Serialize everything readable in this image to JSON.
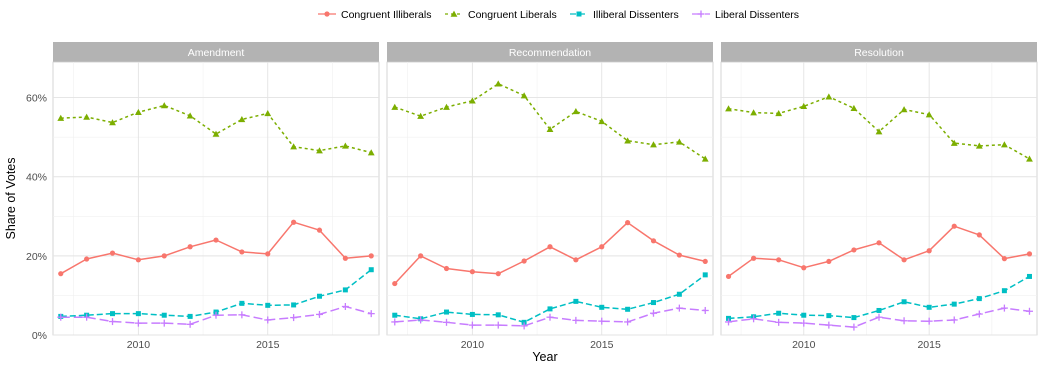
{
  "chart_data": {
    "type": "line",
    "xlabel": "Year",
    "ylabel": "Share of Votes",
    "xlim": [
      2006.7,
      2019.3
    ],
    "ylim": [
      0,
      0.69
    ],
    "y_ticks": [
      0,
      0.2,
      0.4,
      0.6
    ],
    "y_tick_labels": [
      "0%",
      "20%",
      "40%",
      "60%"
    ],
    "x_ticks": [
      2010,
      2015
    ],
    "x_tick_labels": [
      "2010",
      "2015"
    ],
    "legend_position": "top",
    "grid": true,
    "x": [
      2007,
      2008,
      2009,
      2010,
      2011,
      2012,
      2013,
      2014,
      2015,
      2016,
      2017,
      2018,
      2019
    ],
    "series_styles": [
      {
        "key": "congruent_illiberals",
        "color": "#F8766D",
        "dash": "solid",
        "marker": "circle"
      },
      {
        "key": "congruent_liberals",
        "color": "#7CAE00",
        "dash": "dotted",
        "marker": "triangle"
      },
      {
        "key": "illiberal_dissenters",
        "color": "#00BFC4",
        "dash": "dashed",
        "marker": "square"
      },
      {
        "key": "liberal_dissenters",
        "color": "#C77CFF",
        "dash": "longdash",
        "marker": "plus"
      }
    ],
    "legend": [
      {
        "label": "Congruent Illiberals"
      },
      {
        "label": "Congruent Liberals"
      },
      {
        "label": "Illiberal Dissenters"
      },
      {
        "label": "Liberal Dissenters"
      }
    ],
    "facets": [
      {
        "title": "Amendment",
        "series": [
          {
            "name": "Congruent Illiberals",
            "values": [
              0.155,
              0.192,
              0.207,
              0.19,
              0.2,
              0.223,
              0.24,
              0.21,
              0.205,
              0.285,
              0.265,
              0.194,
              0.2
            ]
          },
          {
            "name": "Congruent Liberals",
            "values": [
              0.548,
              0.551,
              0.537,
              0.563,
              0.58,
              0.554,
              0.508,
              0.545,
              0.56,
              0.476,
              0.466,
              0.478,
              0.461
            ]
          },
          {
            "name": "Illiberal Dissenters",
            "values": [
              0.047,
              0.05,
              0.054,
              0.054,
              0.05,
              0.047,
              0.058,
              0.08,
              0.075,
              0.076,
              0.098,
              0.114,
              0.165
            ]
          },
          {
            "name": "Liberal Dissenters",
            "values": [
              0.045,
              0.045,
              0.034,
              0.03,
              0.03,
              0.027,
              0.05,
              0.051,
              0.038,
              0.044,
              0.052,
              0.072,
              0.054
            ]
          }
        ]
      },
      {
        "title": "Recommendation",
        "series": [
          {
            "name": "Congruent Illiberals",
            "values": [
              0.13,
              0.2,
              0.168,
              0.16,
              0.155,
              0.187,
              0.223,
              0.19,
              0.223,
              0.284,
              0.238,
              0.202,
              0.186
            ]
          },
          {
            "name": "Congruent Liberals",
            "values": [
              0.576,
              0.553,
              0.576,
              0.592,
              0.635,
              0.605,
              0.52,
              0.565,
              0.54,
              0.491,
              0.481,
              0.488,
              0.445
            ]
          },
          {
            "name": "Illiberal Dissenters",
            "values": [
              0.05,
              0.041,
              0.058,
              0.052,
              0.051,
              0.032,
              0.066,
              0.085,
              0.07,
              0.065,
              0.082,
              0.103,
              0.152
            ]
          },
          {
            "name": "Liberal Dissenters",
            "values": [
              0.033,
              0.038,
              0.032,
              0.025,
              0.025,
              0.023,
              0.045,
              0.037,
              0.035,
              0.033,
              0.055,
              0.068,
              0.062
            ]
          }
        ]
      },
      {
        "title": "Resolution",
        "series": [
          {
            "name": "Congruent Illiberals",
            "values": [
              0.148,
              0.194,
              0.19,
              0.17,
              0.186,
              0.215,
              0.233,
              0.19,
              0.213,
              0.275,
              0.253,
              0.193,
              0.205
            ]
          },
          {
            "name": "Congruent Liberals",
            "values": [
              0.572,
              0.562,
              0.56,
              0.578,
              0.602,
              0.573,
              0.514,
              0.57,
              0.557,
              0.485,
              0.478,
              0.481,
              0.445
            ]
          },
          {
            "name": "Illiberal Dissenters",
            "values": [
              0.042,
              0.046,
              0.055,
              0.05,
              0.049,
              0.044,
              0.062,
              0.084,
              0.07,
              0.078,
              0.092,
              0.112,
              0.148
            ]
          },
          {
            "name": "Liberal Dissenters",
            "values": [
              0.033,
              0.041,
              0.032,
              0.03,
              0.025,
              0.02,
              0.045,
              0.036,
              0.035,
              0.038,
              0.053,
              0.068,
              0.06
            ]
          }
        ]
      }
    ]
  }
}
